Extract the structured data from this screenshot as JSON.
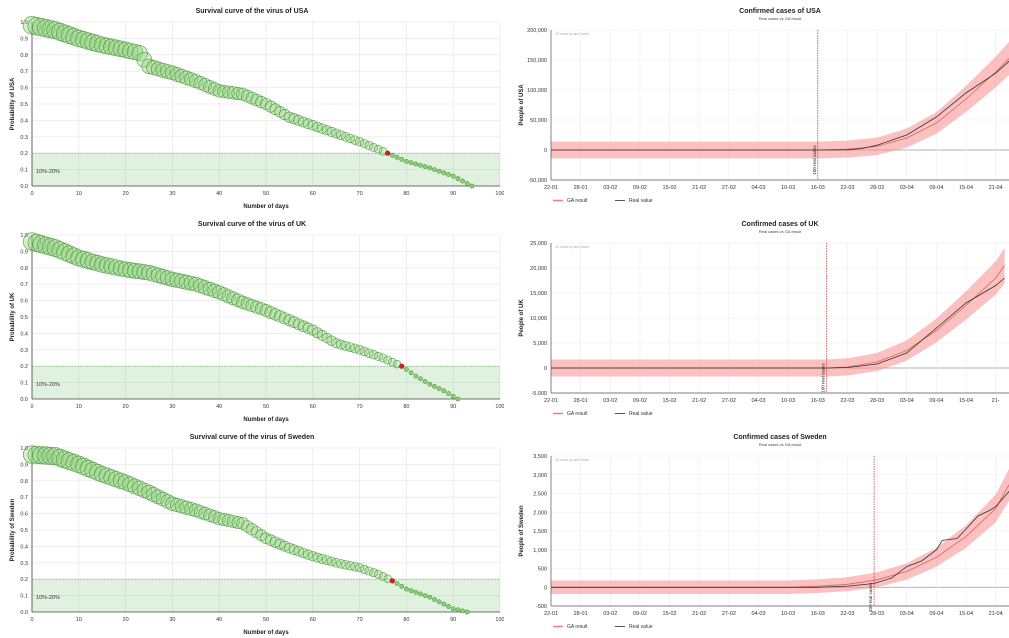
{
  "survival": [
    {
      "title": "Survival curve of the virus of USA",
      "xlabel": "Number of days",
      "ylabel": "Probability of USA",
      "band_label": "10%-20%",
      "chart_data": {
        "type": "scatter",
        "xlim": [
          0,
          100
        ],
        "ylim": [
          0,
          1.0
        ],
        "xticks": [
          "0",
          "10",
          "20",
          "30",
          "40",
          "50",
          "60",
          "70",
          "80",
          "90",
          "100"
        ],
        "yticks": [
          "0.0",
          "0.1",
          "0.2",
          "0.3",
          "0.4",
          "0.5",
          "0.6",
          "0.7",
          "0.8",
          "0.9",
          "1.0"
        ],
        "band": [
          0.0,
          0.2
        ],
        "end_day": 94,
        "marker_day": 76,
        "curve": [
          [
            0,
            0.98
          ],
          [
            5,
            0.95
          ],
          [
            10,
            0.9
          ],
          [
            15,
            0.86
          ],
          [
            20,
            0.83
          ],
          [
            23,
            0.81
          ],
          [
            25,
            0.73
          ],
          [
            30,
            0.69
          ],
          [
            35,
            0.64
          ],
          [
            40,
            0.58
          ],
          [
            45,
            0.56
          ],
          [
            50,
            0.5
          ],
          [
            55,
            0.42
          ],
          [
            60,
            0.37
          ],
          [
            65,
            0.32
          ],
          [
            70,
            0.27
          ],
          [
            76,
            0.2
          ],
          [
            80,
            0.15
          ],
          [
            85,
            0.11
          ],
          [
            90,
            0.06
          ],
          [
            94,
            0.0
          ]
        ]
      }
    },
    {
      "title": "Survival curve of the virus of UK",
      "xlabel": "Number of days",
      "ylabel": "Probability of UK",
      "band_label": "10%-20%",
      "chart_data": {
        "type": "scatter",
        "xlim": [
          0,
          100
        ],
        "ylim": [
          0,
          1.0
        ],
        "xticks": [
          "0",
          "10",
          "20",
          "30",
          "40",
          "50",
          "60",
          "70",
          "80",
          "90",
          "100"
        ],
        "yticks": [
          "0.0",
          "0.1",
          "0.2",
          "0.3",
          "0.4",
          "0.5",
          "0.6",
          "0.7",
          "0.8",
          "0.9",
          "1.0"
        ],
        "band": [
          0.0,
          0.2
        ],
        "end_day": 91,
        "marker_day": 79,
        "curve": [
          [
            0,
            0.96
          ],
          [
            5,
            0.92
          ],
          [
            10,
            0.86
          ],
          [
            15,
            0.82
          ],
          [
            20,
            0.79
          ],
          [
            25,
            0.77
          ],
          [
            30,
            0.73
          ],
          [
            35,
            0.7
          ],
          [
            40,
            0.65
          ],
          [
            45,
            0.59
          ],
          [
            50,
            0.54
          ],
          [
            55,
            0.48
          ],
          [
            60,
            0.42
          ],
          [
            65,
            0.34
          ],
          [
            70,
            0.3
          ],
          [
            75,
            0.25
          ],
          [
            79,
            0.2
          ],
          [
            82,
            0.14
          ],
          [
            85,
            0.09
          ],
          [
            88,
            0.05
          ],
          [
            91,
            0.0
          ]
        ]
      }
    },
    {
      "title": "Survival curve of the virus of Sweden",
      "xlabel": "Number of days",
      "ylabel": "Probability of Sweden",
      "band_label": "10%-20%",
      "chart_data": {
        "type": "scatter",
        "xlim": [
          0,
          100
        ],
        "ylim": [
          0,
          1.0
        ],
        "xticks": [
          "0",
          "10",
          "20",
          "30",
          "40",
          "50",
          "60",
          "70",
          "80",
          "90",
          "100"
        ],
        "yticks": [
          "0.0",
          "0.1",
          "0.2",
          "0.3",
          "0.4",
          "0.5",
          "0.6",
          "0.7",
          "0.8",
          "0.9",
          "1.0"
        ],
        "band": [
          0.0,
          0.2
        ],
        "end_day": 93,
        "marker_day": 77,
        "curve": [
          [
            0,
            0.96
          ],
          [
            5,
            0.95
          ],
          [
            10,
            0.9
          ],
          [
            15,
            0.84
          ],
          [
            20,
            0.79
          ],
          [
            25,
            0.73
          ],
          [
            30,
            0.66
          ],
          [
            35,
            0.62
          ],
          [
            40,
            0.57
          ],
          [
            45,
            0.54
          ],
          [
            50,
            0.45
          ],
          [
            55,
            0.39
          ],
          [
            60,
            0.34
          ],
          [
            65,
            0.3
          ],
          [
            70,
            0.27
          ],
          [
            74,
            0.23
          ],
          [
            77,
            0.19
          ],
          [
            80,
            0.14
          ],
          [
            85,
            0.09
          ],
          [
            90,
            0.02
          ],
          [
            93,
            0.0
          ]
        ]
      }
    }
  ],
  "confirmed": [
    {
      "title": "Confirmed cases of USA",
      "subtitle": "Real cases vs GA result",
      "watermark": "JS chart by amCharts",
      "ylabel": "People of USA",
      "vline_label": "100 real cases",
      "legend": [
        "GA result",
        "Real value"
      ],
      "chart_data": {
        "type": "line",
        "ylim": [
          -50000,
          200000
        ],
        "yticks": [
          {
            "v": 200000,
            "t": "200,000"
          },
          {
            "v": 150000,
            "t": "150,000"
          },
          {
            "v": 100000,
            "t": "100,000"
          },
          {
            "v": 50000,
            "t": "50,000"
          },
          {
            "v": 0,
            "t": "0"
          },
          {
            "v": -50000,
            "t": "-50,000"
          }
        ],
        "xticks": [
          "22-01",
          "28-01",
          "03-02",
          "09-02",
          "15-02",
          "21-02",
          "27-02",
          "04-03",
          "10-03",
          "16-03",
          "22-03",
          "28-03",
          "03-04",
          "09-04",
          "15-04",
          "21-04"
        ],
        "vline_index": 9,
        "band_width": 14000,
        "ga": [
          [
            0,
            0
          ],
          [
            9,
            0
          ],
          [
            10,
            1500
          ],
          [
            11,
            6000
          ],
          [
            12,
            20000
          ],
          [
            13,
            45000
          ],
          [
            14,
            85000
          ],
          [
            15,
            130000
          ],
          [
            15.5,
            155000
          ]
        ],
        "real": [
          [
            0,
            0
          ],
          [
            9,
            0
          ],
          [
            10,
            400
          ],
          [
            10.5,
            2500
          ],
          [
            11,
            8000
          ],
          [
            12,
            25000
          ],
          [
            13,
            55000
          ],
          [
            14,
            95000
          ],
          [
            15,
            128000
          ],
          [
            15.5,
            150000
          ]
        ]
      }
    },
    {
      "title": "Confirmed cases of UK",
      "subtitle": "Real cases vs GA result",
      "watermark": "JS chart by amCharts",
      "ylabel": "People of UK",
      "vline_label": "100 real cases",
      "legend": [
        "GA result",
        "Real value"
      ],
      "chart_data": {
        "type": "line",
        "ylim": [
          -5000,
          25000
        ],
        "yticks": [
          {
            "v": 25000,
            "t": "25,000"
          },
          {
            "v": 20000,
            "t": "20,000"
          },
          {
            "v": 15000,
            "t": "15,000"
          },
          {
            "v": 10000,
            "t": "10,000"
          },
          {
            "v": 5000,
            "t": "5,000"
          },
          {
            "v": 0,
            "t": "0"
          },
          {
            "v": -5000,
            "t": "-5,000"
          }
        ],
        "xticks": [
          "22-01",
          "28-01",
          "03-02",
          "09-02",
          "15-02",
          "21-02",
          "27-02",
          "04-03",
          "10-03",
          "16-03",
          "22-03",
          "28-03",
          "03-04",
          "09-04",
          "15-04",
          "21-"
        ],
        "vline_index": 9.3,
        "band_width": 1700,
        "ga": [
          [
            0,
            0
          ],
          [
            9.3,
            0
          ],
          [
            10,
            200
          ],
          [
            11,
            1200
          ],
          [
            12,
            3500
          ],
          [
            13,
            7500
          ],
          [
            14,
            12500
          ],
          [
            15,
            18000
          ],
          [
            15.3,
            20500
          ]
        ],
        "real": [
          [
            0,
            0
          ],
          [
            9.3,
            0
          ],
          [
            10,
            100
          ],
          [
            11,
            800
          ],
          [
            12,
            3000
          ],
          [
            13,
            8000
          ],
          [
            14,
            13000
          ],
          [
            15,
            16500
          ],
          [
            15.3,
            18000
          ]
        ]
      }
    },
    {
      "title": "Confirmed cases of Sweden",
      "subtitle": "Real cases vs GA result",
      "watermark": "JS chart by amCharts",
      "ylabel": "People of Sweden",
      "vline_label": "100 real cases",
      "legend": [
        "GA result",
        "Real value"
      ],
      "chart_data": {
        "type": "line",
        "ylim": [
          -500,
          3500
        ],
        "yticks": [
          {
            "v": 3500,
            "t": "3,500"
          },
          {
            "v": 3000,
            "t": "3,000"
          },
          {
            "v": 2500,
            "t": "2,500"
          },
          {
            "v": 2000,
            "t": "2,000"
          },
          {
            "v": 1500,
            "t": "1,500"
          },
          {
            "v": 1000,
            "t": "1,000"
          },
          {
            "v": 500,
            "t": "500"
          },
          {
            "v": 0,
            "t": "0"
          },
          {
            "v": -500,
            "t": "-500"
          }
        ],
        "xticks": [
          "22-01",
          "28-01",
          "03-02",
          "09-02",
          "15-02",
          "21-02",
          "27-02",
          "04-03",
          "10-03",
          "16-03",
          "22-03",
          "28-03",
          "03-04",
          "09-04",
          "15-04",
          "21-04"
        ],
        "vline_index": 10.9,
        "band_width": 180,
        "ga": [
          [
            0,
            0
          ],
          [
            8,
            0
          ],
          [
            9,
            30
          ],
          [
            10,
            80
          ],
          [
            11,
            200
          ],
          [
            12,
            420
          ],
          [
            13,
            800
          ],
          [
            14,
            1350
          ],
          [
            15,
            2100
          ],
          [
            15.5,
            2800
          ]
        ],
        "real": [
          [
            0,
            0
          ],
          [
            9,
            0
          ],
          [
            10,
            30
          ],
          [
            10.9,
            100
          ],
          [
            11.5,
            250
          ],
          [
            12,
            550
          ],
          [
            12.5,
            700
          ],
          [
            13,
            1000
          ],
          [
            13.2,
            1250
          ],
          [
            13.7,
            1300
          ],
          [
            14,
            1550
          ],
          [
            14.4,
            1900
          ],
          [
            14.8,
            2050
          ],
          [
            15,
            2150
          ],
          [
            15.5,
            2600
          ]
        ]
      }
    }
  ]
}
